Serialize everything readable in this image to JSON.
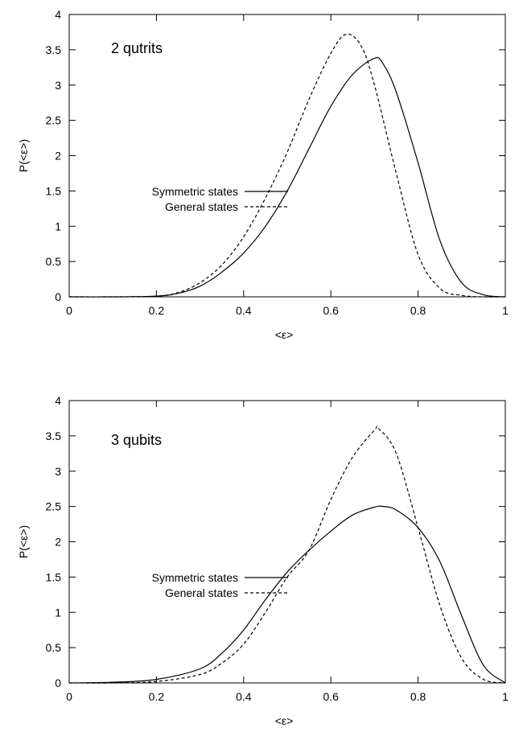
{
  "chart_data": [
    {
      "type": "line",
      "annotation": "2 qutrits",
      "xlabel": "<ε>",
      "ylabel": "P(<ε>)",
      "xlim": [
        0,
        1
      ],
      "ylim": [
        0,
        4
      ],
      "xticks": [
        "0",
        "0.2",
        "0.4",
        "0.6",
        "0.8",
        "1"
      ],
      "yticks": [
        "0",
        "0.5",
        "1",
        "1.5",
        "2",
        "2.5",
        "3",
        "3.5",
        "4"
      ],
      "grid": false,
      "legend_position": "center-left",
      "series": [
        {
          "name": "Symmetric states",
          "style": "solid",
          "color": "#000000",
          "x": [
            0,
            0.1,
            0.2,
            0.25,
            0.3,
            0.35,
            0.4,
            0.45,
            0.5,
            0.55,
            0.6,
            0.65,
            0.7,
            0.72,
            0.75,
            0.8,
            0.85,
            0.9,
            0.95,
            1.0
          ],
          "y": [
            0,
            0,
            0.01,
            0.05,
            0.15,
            0.35,
            0.62,
            1.0,
            1.5,
            2.1,
            2.7,
            3.15,
            3.38,
            3.3,
            2.9,
            1.9,
            0.8,
            0.2,
            0.03,
            0
          ]
        },
        {
          "name": "General states",
          "style": "dashed",
          "color": "#000000",
          "x": [
            0,
            0.1,
            0.2,
            0.25,
            0.3,
            0.35,
            0.4,
            0.45,
            0.5,
            0.55,
            0.6,
            0.635,
            0.67,
            0.7,
            0.75,
            0.8,
            0.85,
            0.9,
            0.95,
            1.0
          ],
          "y": [
            0,
            0,
            0.01,
            0.06,
            0.2,
            0.45,
            0.85,
            1.4,
            2.05,
            2.8,
            3.45,
            3.72,
            3.55,
            3.0,
            1.75,
            0.6,
            0.12,
            0.02,
            0,
            0
          ]
        }
      ]
    },
    {
      "type": "line",
      "annotation": "3 qubits",
      "xlabel": "<ε>",
      "ylabel": "P(<ε>)",
      "xlim": [
        0,
        1
      ],
      "ylim": [
        0,
        4
      ],
      "xticks": [
        "0",
        "0.2",
        "0.4",
        "0.6",
        "0.8",
        "1"
      ],
      "yticks": [
        "0",
        "0.5",
        "1",
        "1.5",
        "2",
        "2.5",
        "3",
        "3.5",
        "4"
      ],
      "grid": false,
      "legend_position": "center-left",
      "series": [
        {
          "name": "Symmetric states",
          "style": "solid",
          "color": "#000000",
          "x": [
            0,
            0.1,
            0.2,
            0.3,
            0.35,
            0.4,
            0.45,
            0.5,
            0.55,
            0.6,
            0.65,
            0.7,
            0.72,
            0.75,
            0.8,
            0.85,
            0.9,
            0.95,
            1.0
          ],
          "y": [
            0,
            0.01,
            0.05,
            0.2,
            0.42,
            0.75,
            1.18,
            1.57,
            1.88,
            2.15,
            2.38,
            2.49,
            2.5,
            2.45,
            2.2,
            1.72,
            0.95,
            0.25,
            0
          ]
        },
        {
          "name": "General states",
          "style": "dashed",
          "color": "#000000",
          "x": [
            0,
            0.1,
            0.2,
            0.3,
            0.35,
            0.4,
            0.45,
            0.5,
            0.55,
            0.6,
            0.65,
            0.7,
            0.71,
            0.75,
            0.8,
            0.85,
            0.9,
            0.95,
            1.0
          ],
          "y": [
            0,
            0,
            0.02,
            0.12,
            0.28,
            0.55,
            1.0,
            1.5,
            1.88,
            2.6,
            3.2,
            3.58,
            3.6,
            3.25,
            2.2,
            1.1,
            0.35,
            0.05,
            0
          ]
        }
      ]
    }
  ]
}
